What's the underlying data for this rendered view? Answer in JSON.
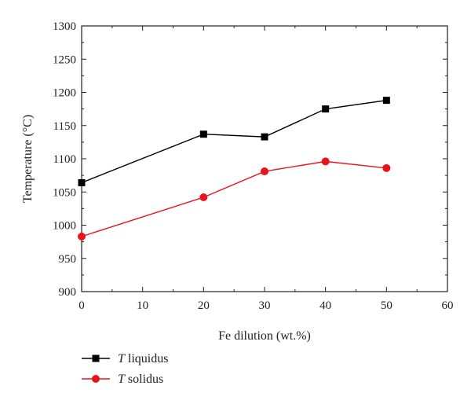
{
  "chart_data": {
    "type": "line",
    "title": "",
    "xlabel": "Fe dilution (wt.%)",
    "ylabel": "Temperature (°C)",
    "xlim": [
      0,
      60
    ],
    "ylim": [
      900,
      1300
    ],
    "xticks": [
      0,
      10,
      20,
      30,
      40,
      50,
      60
    ],
    "yticks": [
      900,
      950,
      1000,
      1050,
      1100,
      1150,
      1200,
      1250,
      1300
    ],
    "grid": false,
    "legend_position": "bottom-left",
    "series": [
      {
        "name_symbol": "T",
        "name_rest": " liquidus",
        "color": "#000000",
        "marker": "square",
        "x": [
          0,
          20,
          30,
          40,
          50
        ],
        "y": [
          1064,
          1137,
          1133,
          1175,
          1188
        ]
      },
      {
        "name_symbol": "T",
        "name_rest": " solidus",
        "color": "#e8141b",
        "marker": "circle",
        "x": [
          0,
          20,
          30,
          40,
          50
        ],
        "y": [
          983,
          1042,
          1081,
          1096,
          1086
        ]
      }
    ]
  }
}
